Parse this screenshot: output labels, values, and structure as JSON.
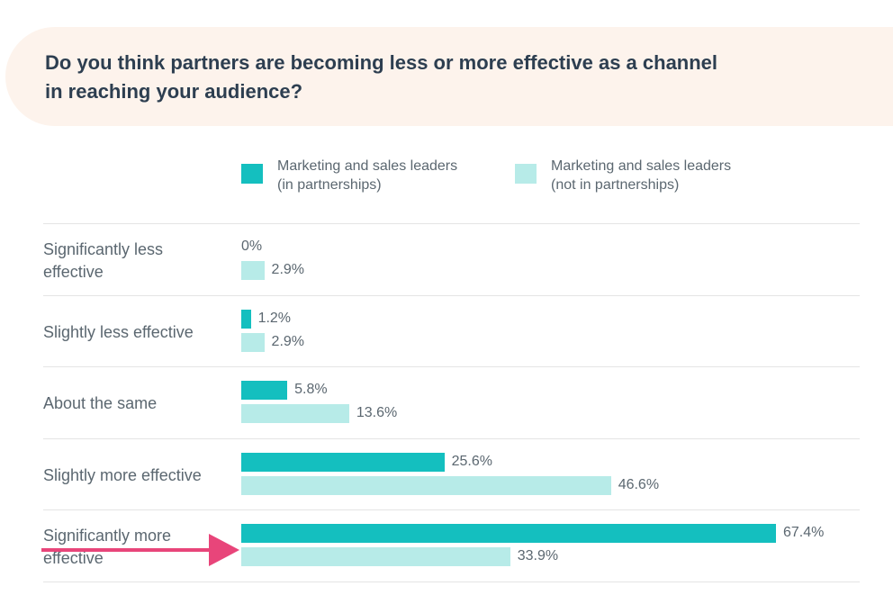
{
  "chart_data": {
    "type": "bar",
    "orientation": "horizontal",
    "title": "Do you think partners are becoming less or more effective as a channel in reaching your audience?",
    "title_lines": [
      "Do you think partners are becoming less or more effective as a channel",
      "in reaching your audience?"
    ],
    "categories": [
      {
        "lines": [
          "Significantly less",
          "effective"
        ]
      },
      {
        "lines": [
          "Slightly less effective"
        ]
      },
      {
        "lines": [
          "About the same"
        ]
      },
      {
        "lines": [
          "Slightly more effective"
        ]
      },
      {
        "lines": [
          "Significantly more",
          "effective"
        ]
      }
    ],
    "series": [
      {
        "name": "Marketing and sales leaders (in partnerships)",
        "legend_lines": [
          "Marketing and sales leaders",
          "(in partnerships)"
        ],
        "color": "#14bfbf",
        "values": [
          0,
          1.2,
          5.8,
          25.6,
          67.4
        ],
        "labels": [
          "0%",
          "1.2%",
          "5.8%",
          "25.6%",
          "67.4%"
        ]
      },
      {
        "name": "Marketing and sales leaders (not in partnerships)",
        "legend_lines": [
          "Marketing and sales leaders",
          "(not in partnerships)"
        ],
        "color": "#b7ebe8",
        "values": [
          2.9,
          2.9,
          13.6,
          46.6,
          33.9
        ],
        "labels": [
          "2.9%",
          "2.9%",
          "13.6%",
          "46.6%",
          "33.9%"
        ]
      }
    ],
    "xlim": [
      0,
      67.4
    ],
    "xlabel": "",
    "ylabel": "",
    "grid": false,
    "legend_position": "top",
    "annotation": {
      "type": "arrow",
      "color": "#e8457a",
      "points_to": "Significantly more effective"
    }
  }
}
